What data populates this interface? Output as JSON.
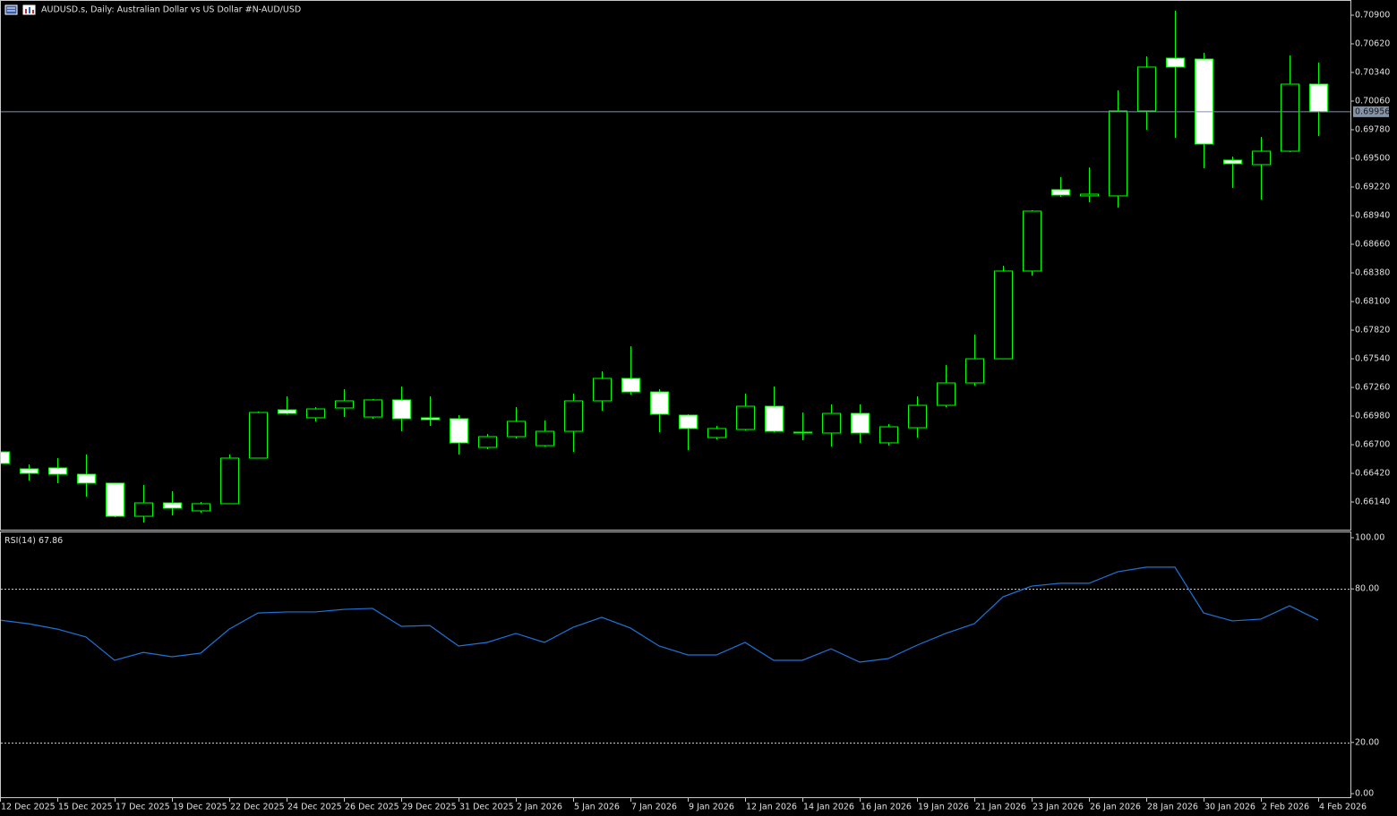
{
  "chart_data": [
    {
      "type": "candlestick",
      "title": "AUDUSD.s, Daily:  Australian Dollar vs US Dollar #N-AUD/USD",
      "categories": [
        "12 Dec 2025",
        null,
        "15 Dec 2025",
        null,
        "17 Dec 2025",
        null,
        "19 Dec 2025",
        null,
        "22 Dec 2025",
        null,
        "24 Dec 2025",
        null,
        "26 Dec 2025",
        null,
        "29 Dec 2025",
        null,
        "31 Dec 2025",
        null,
        "2 Jan 2026",
        null,
        "5 Jan 2026",
        null,
        "7 Jan 2026",
        null,
        "9 Jan 2026",
        null,
        "12 Jan 2026",
        null,
        "14 Jan 2026",
        null,
        "16 Jan 2026",
        null,
        "19 Jan 2026",
        null,
        "21 Jan 2026",
        null,
        "23 Jan 2026",
        null,
        "26 Jan 2026",
        null,
        "28 Jan 2026",
        null,
        "30 Jan 2026",
        null,
        "2 Feb 2026",
        null,
        "4 Feb 2026"
      ],
      "open": [
        0.6663,
        0.66464,
        0.66473,
        0.66411,
        0.66324,
        0.66,
        0.66131,
        0.66053,
        0.66123,
        0.66569,
        0.67041,
        0.66963,
        0.67059,
        0.66971,
        0.67138,
        0.66963,
        0.66954,
        0.66674,
        0.66779,
        0.66691,
        0.66831,
        0.67129,
        0.67348,
        0.67216,
        0.66989,
        0.6677,
        0.66849,
        0.67076,
        0.66823,
        0.66814,
        0.67006,
        0.66718,
        0.66866,
        0.67085,
        0.67304,
        0.6754,
        0.68398,
        0.69194,
        0.69133,
        0.69133,
        0.69964,
        0.7048,
        0.70471,
        0.69483,
        0.69439,
        0.6957,
        0.70226
      ],
      "high": [
        0.66648,
        0.66508,
        0.66569,
        0.66604,
        0.66324,
        0.66306,
        0.66245,
        0.6614,
        0.66604,
        0.67024,
        0.67173,
        0.67068,
        0.67243,
        0.67146,
        0.67269,
        0.67173,
        0.66989,
        0.66805,
        0.67068,
        0.66936,
        0.67199,
        0.67418,
        0.67663,
        0.67243,
        0.66998,
        0.66884,
        0.67199,
        0.67269,
        0.67015,
        0.67094,
        0.67094,
        0.66901,
        0.67173,
        0.67479,
        0.67776,
        0.6845,
        0.68993,
        0.69316,
        0.69412,
        0.70165,
        0.70498,
        0.70944,
        0.70533,
        0.69518,
        0.6971,
        0.70506,
        0.70436
      ],
      "low": [
        0.66499,
        0.6635,
        0.66324,
        0.66193,
        0.65991,
        0.65939,
        0.66009,
        0.66035,
        0.66123,
        0.66569,
        0.66998,
        0.66928,
        0.66971,
        0.66954,
        0.66831,
        0.66884,
        0.66604,
        0.66656,
        0.66761,
        0.66683,
        0.6663,
        0.67033,
        0.6719,
        0.66823,
        0.66648,
        0.66753,
        0.6684,
        0.66823,
        0.66744,
        0.66683,
        0.66718,
        0.66691,
        0.6677,
        0.67068,
        0.67278,
        0.6754,
        0.68354,
        0.69124,
        0.69071,
        0.69019,
        0.6978,
        0.69701,
        0.69404,
        0.69211,
        0.69098,
        0.69561,
        0.69719
      ],
      "close": [
        0.66516,
        0.6642,
        0.66411,
        0.66324,
        0.66,
        0.66131,
        0.66079,
        0.66123,
        0.66569,
        0.67015,
        0.67006,
        0.6705,
        0.67129,
        0.67138,
        0.66954,
        0.66945,
        0.66718,
        0.66779,
        0.66928,
        0.66831,
        0.67129,
        0.67348,
        0.67216,
        0.66998,
        0.66858,
        0.66858,
        0.67076,
        0.66831,
        0.66814,
        0.67006,
        0.66814,
        0.66875,
        0.67085,
        0.67304,
        0.6754,
        0.68398,
        0.68984,
        0.69141,
        0.6915,
        0.69964,
        0.70393,
        0.70393,
        0.6964,
        0.69448,
        0.6957,
        0.70226,
        0.69956
      ],
      "ylim": [
        0.65869,
        0.7104
      ],
      "yticks": [
        {
          "value": 0.709,
          "label": "0.70900"
        },
        {
          "value": 0.7062,
          "label": "0.70620"
        },
        {
          "value": 0.7034,
          "label": "0.70340"
        },
        {
          "value": 0.7006,
          "label": "0.70060"
        },
        {
          "value": 0.6978,
          "label": "0.69780"
        },
        {
          "value": 0.695,
          "label": "0.69500"
        },
        {
          "value": 0.6922,
          "label": "0.69220"
        },
        {
          "value": 0.6894,
          "label": "0.68940"
        },
        {
          "value": 0.6866,
          "label": "0.68660"
        },
        {
          "value": 0.6838,
          "label": "0.68380"
        },
        {
          "value": 0.681,
          "label": "0.68100"
        },
        {
          "value": 0.6782,
          "label": "0.67820"
        },
        {
          "value": 0.6754,
          "label": "0.67540"
        },
        {
          "value": 0.6726,
          "label": "0.67260"
        },
        {
          "value": 0.6698,
          "label": "0.66980"
        },
        {
          "value": 0.667,
          "label": "0.66700"
        },
        {
          "value": 0.6642,
          "label": "0.66420"
        },
        {
          "value": 0.6614,
          "label": "0.66140"
        }
      ],
      "up_color": "#000000",
      "down_color": "#ffffff",
      "wick_color": "#00ff00",
      "last_price": 0.69956,
      "last_price_color": "#8593a8"
    },
    {
      "type": "line",
      "series": [
        {
          "name": "RSI(14)",
          "color": "#1e73d8",
          "values": [
            67.8,
            66.4,
            64.3,
            61.2,
            52.1,
            55.2,
            53.5,
            54.9,
            64.3,
            70.6,
            71.0,
            71.0,
            72.0,
            72.4,
            65.4,
            65.7,
            57.7,
            59.1,
            62.6,
            59.1,
            65.0,
            68.9,
            64.7,
            57.7,
            54.2,
            54.2,
            59.1,
            52.1,
            52.1,
            56.6,
            51.4,
            52.8,
            58.0,
            62.6,
            66.4,
            76.9,
            81.1,
            82.2,
            82.2,
            86.7,
            88.5,
            88.5,
            70.6,
            67.5,
            68.2,
            73.4,
            67.86
          ]
        }
      ],
      "ylim": [
        -1.75,
        102.1
      ],
      "yticks": [
        {
          "value": 100,
          "label": "100.00"
        },
        {
          "value": 80,
          "label": "80.00"
        },
        {
          "value": 20,
          "label": "20.00"
        },
        {
          "value": 0,
          "label": "0.00"
        }
      ],
      "levels": [
        80,
        20
      ]
    }
  ]
}
